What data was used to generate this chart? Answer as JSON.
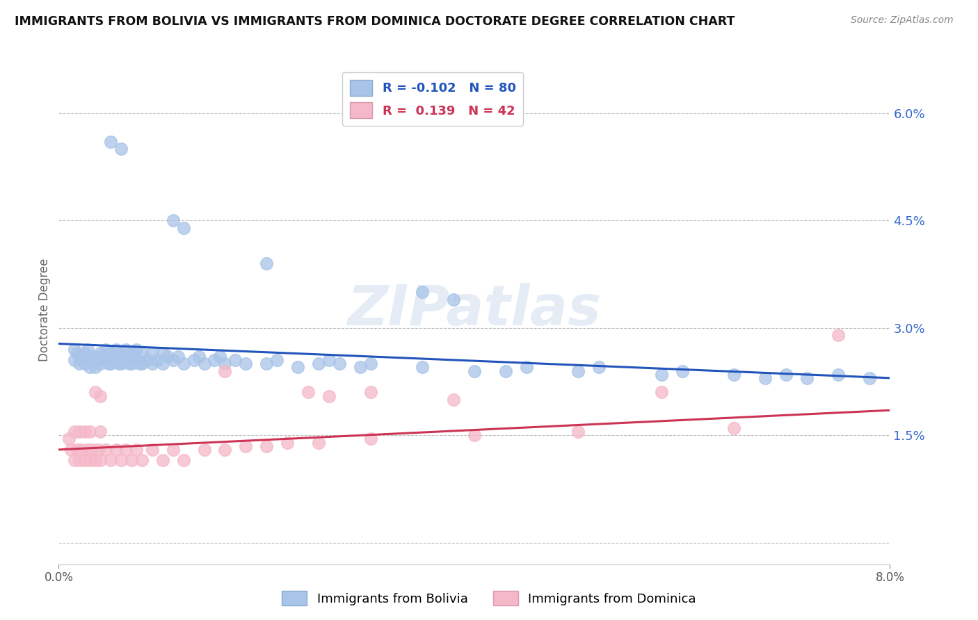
{
  "title": "IMMIGRANTS FROM BOLIVIA VS IMMIGRANTS FROM DOMINICA DOCTORATE DEGREE CORRELATION CHART",
  "source": "Source: ZipAtlas.com",
  "ylabel": "Doctorate Degree",
  "xlim": [
    0.0,
    8.0
  ],
  "ylim": [
    -0.3,
    6.8
  ],
  "yticks": [
    0.0,
    1.5,
    3.0,
    4.5,
    6.0
  ],
  "bolivia_color": "#a8c4e8",
  "dominica_color": "#f5b8c8",
  "trendline_bolivia_color": "#2255bb",
  "trendline_dominica_color": "#cc3355",
  "watermark_text": "ZIPatlas",
  "legend_bolivia_R": "-0.102",
  "legend_bolivia_N": "80",
  "legend_dominica_R": "0.139",
  "legend_dominica_N": "42",
  "bolivia_x": [
    0.15,
    0.15,
    0.18,
    0.2,
    0.2,
    0.25,
    0.25,
    0.28,
    0.3,
    0.3,
    0.32,
    0.35,
    0.35,
    0.38,
    0.4,
    0.4,
    0.42,
    0.45,
    0.45,
    0.48,
    0.5,
    0.5,
    0.52,
    0.55,
    0.55,
    0.58,
    0.6,
    0.6,
    0.62,
    0.65,
    0.65,
    0.68,
    0.7,
    0.7,
    0.72,
    0.75,
    0.75,
    0.78,
    0.8,
    0.8,
    0.85,
    0.9,
    0.9,
    0.95,
    1.0,
    1.0,
    1.05,
    1.1,
    1.15,
    1.2,
    1.3,
    1.35,
    1.4,
    1.5,
    1.55,
    1.6,
    1.7,
    1.8,
    2.0,
    2.1,
    2.3,
    2.5,
    2.6,
    2.7,
    2.9,
    3.0,
    3.5,
    4.0,
    4.5,
    5.0,
    5.2,
    5.8,
    6.0,
    6.5,
    6.8,
    7.0,
    7.2,
    7.5,
    7.8,
    4.3
  ],
  "bolivia_y": [
    2.7,
    2.55,
    2.65,
    2.6,
    2.5,
    2.65,
    2.5,
    2.7,
    2.6,
    2.45,
    2.55,
    2.6,
    2.45,
    2.55,
    2.65,
    2.5,
    2.6,
    2.7,
    2.55,
    2.5,
    2.65,
    2.5,
    2.6,
    2.7,
    2.55,
    2.5,
    2.65,
    2.5,
    2.6,
    2.7,
    2.55,
    2.5,
    2.65,
    2.5,
    2.6,
    2.7,
    2.55,
    2.5,
    2.65,
    2.5,
    2.55,
    2.65,
    2.5,
    2.55,
    2.65,
    2.5,
    2.6,
    2.55,
    2.6,
    2.5,
    2.55,
    2.6,
    2.5,
    2.55,
    2.6,
    2.5,
    2.55,
    2.5,
    2.5,
    2.55,
    2.45,
    2.5,
    2.55,
    2.5,
    2.45,
    2.5,
    2.45,
    2.4,
    2.45,
    2.4,
    2.45,
    2.35,
    2.4,
    2.35,
    2.3,
    2.35,
    2.3,
    2.35,
    2.3,
    2.4
  ],
  "bolivia_x_upper": [
    0.5,
    0.6,
    1.1,
    1.2,
    2.0,
    3.5,
    3.8
  ],
  "bolivia_y_upper": [
    5.6,
    5.5,
    4.5,
    4.4,
    3.9,
    3.5,
    3.4
  ],
  "dominica_x": [
    0.1,
    0.12,
    0.15,
    0.15,
    0.18,
    0.2,
    0.2,
    0.22,
    0.25,
    0.25,
    0.28,
    0.3,
    0.3,
    0.32,
    0.35,
    0.38,
    0.4,
    0.4,
    0.45,
    0.5,
    0.55,
    0.6,
    0.65,
    0.7,
    0.75,
    0.8,
    0.9,
    1.0,
    1.1,
    1.2,
    1.4,
    1.6,
    1.8,
    2.0,
    2.2,
    2.5,
    3.0,
    4.0,
    5.0,
    6.5,
    7.5,
    5.8
  ],
  "dominica_y": [
    1.45,
    1.3,
    1.15,
    1.55,
    1.3,
    1.15,
    1.55,
    1.3,
    1.15,
    1.55,
    1.3,
    1.15,
    1.55,
    1.3,
    1.15,
    1.3,
    1.15,
    1.55,
    1.3,
    1.15,
    1.3,
    1.15,
    1.3,
    1.15,
    1.3,
    1.15,
    1.3,
    1.15,
    1.3,
    1.15,
    1.3,
    1.3,
    1.35,
    1.35,
    1.4,
    1.4,
    1.45,
    1.5,
    1.55,
    1.6,
    2.9,
    2.1
  ],
  "dominica_x_special": [
    0.35,
    0.4,
    1.6,
    2.4,
    2.6,
    3.0,
    3.8
  ],
  "dominica_y_special": [
    2.1,
    2.05,
    2.4,
    2.1,
    2.05,
    2.1,
    2.0
  ],
  "trendline_bolivia_x0": 0.0,
  "trendline_bolivia_y0": 2.78,
  "trendline_bolivia_x1": 8.0,
  "trendline_bolivia_y1": 2.3,
  "trendline_dominica_x0": 0.0,
  "trendline_dominica_y0": 1.3,
  "trendline_dominica_x1": 8.0,
  "trendline_dominica_y1": 1.85
}
